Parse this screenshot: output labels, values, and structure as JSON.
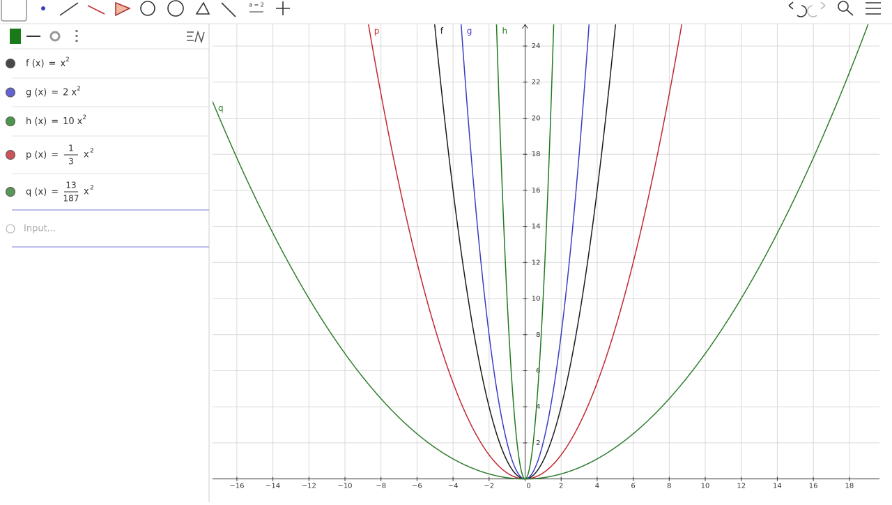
{
  "toolbar": {
    "tools": [
      "a = 2"
    ]
  },
  "algebra": {
    "equals": "=",
    "input_placeholder": "Input...",
    "entries": [
      {
        "name": "f",
        "lhs": "f (x)",
        "coefficient": 1,
        "variable": "x",
        "exponent": "2",
        "color": "#1a1a1a"
      },
      {
        "name": "g",
        "lhs": "g (x)",
        "coefficient": 2,
        "variable": "x",
        "exponent": "2",
        "color": "#3b3bc4"
      },
      {
        "name": "h",
        "lhs": "h (x)",
        "coefficient": 10,
        "variable": "x",
        "exponent": "2",
        "color": "#1f7a1f"
      },
      {
        "name": "p",
        "lhs": "p (x)",
        "numerator": 1,
        "denominator": 3,
        "variable": "x",
        "exponent": "2",
        "color": "#c0282f"
      },
      {
        "name": "q",
        "lhs": "q (x)",
        "numerator": 13,
        "denominator": 187,
        "variable": "x",
        "exponent": "2",
        "color": "#2e7d2e"
      }
    ]
  },
  "graphics": {
    "xlim": [
      -17.35,
      19.67
    ],
    "ylim": [
      -0.13,
      25.2
    ],
    "grid": true,
    "xticks": [
      {
        "value": -16,
        "label": "−16"
      },
      {
        "value": -14,
        "label": "−14"
      },
      {
        "value": -12,
        "label": "−12"
      },
      {
        "value": -10,
        "label": "−10"
      },
      {
        "value": -8,
        "label": "−8"
      },
      {
        "value": -6,
        "label": "−6"
      },
      {
        "value": -4,
        "label": "−4"
      },
      {
        "value": -2,
        "label": "−2"
      },
      0,
      2,
      4,
      6,
      8,
      10,
      12,
      14,
      16,
      18
    ],
    "yticks": [
      2,
      4,
      6,
      8,
      10,
      12,
      14,
      16,
      18,
      20,
      22,
      24
    ]
  }
}
